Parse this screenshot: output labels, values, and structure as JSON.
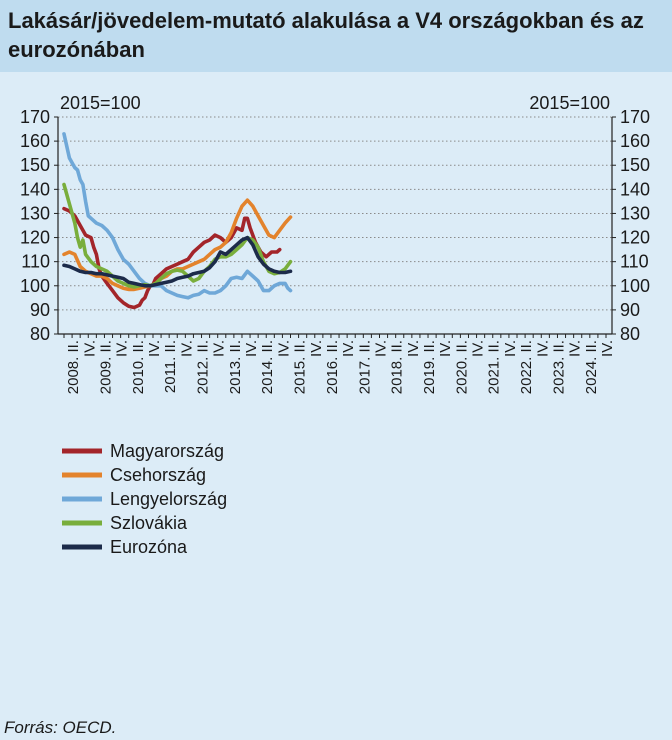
{
  "header": {
    "title": "Lakásár/jövedelem-mutató alakulása a V4 országokban és az eurozónában"
  },
  "source": "Forrás: OECD.",
  "chart_data": {
    "type": "line",
    "title": "Lakásár/jövedelem-mutató alakulása a V4 országokban és az eurozónában",
    "left_axis_note": "2015=100",
    "right_axis_note": "2015=100",
    "ylim": [
      80,
      170
    ],
    "yticks": [
      80,
      90,
      100,
      110,
      120,
      130,
      140,
      150,
      160,
      170
    ],
    "grid": "horizontal dotted",
    "legend_position": "bottom-left",
    "quarter_start": "2008 Q1",
    "quarter_end": "2024 Q4",
    "xtick_labels": [
      "2008. II.",
      "IV.",
      "2009. II.",
      "IV.",
      "2010. II.",
      "IV.",
      "2011. II.",
      "IV.",
      "2012. II.",
      "IV.",
      "2013. II.",
      "IV.",
      "2014. II.",
      "IV.",
      "2015. II.",
      "IV.",
      "2016. II.",
      "IV.",
      "2017. II.",
      "IV.",
      "2018. II.",
      "IV.",
      "2019. II.",
      "IV.",
      "2020. II.",
      "IV.",
      "2021. II.",
      "IV.",
      "2022. II.",
      "IV.",
      "2023. II.",
      "IV.",
      "2024. II.",
      "IV."
    ],
    "series": [
      {
        "name": "Magyarország",
        "color": "#a3252a",
        "points": [
          [
            0,
            132
          ],
          [
            2,
            131
          ],
          [
            4,
            129
          ],
          [
            6,
            125
          ],
          [
            8,
            121
          ],
          [
            10,
            120
          ],
          [
            11,
            116
          ],
          [
            12,
            113
          ],
          [
            13,
            107
          ],
          [
            14,
            104
          ],
          [
            16,
            101
          ],
          [
            18,
            98
          ],
          [
            20,
            95
          ],
          [
            22,
            93
          ],
          [
            24,
            91.5
          ],
          [
            26,
            91
          ],
          [
            28,
            92
          ],
          [
            29,
            94
          ],
          [
            30,
            95
          ],
          [
            31,
            98
          ],
          [
            32,
            100
          ],
          [
            33,
            100.5
          ],
          [
            34,
            103
          ],
          [
            36,
            105
          ],
          [
            38,
            107
          ],
          [
            40,
            108
          ],
          [
            42,
            109
          ],
          [
            44,
            110
          ],
          [
            46,
            111
          ],
          [
            48,
            114
          ],
          [
            50,
            116
          ],
          [
            52,
            118
          ],
          [
            54,
            119
          ],
          [
            56,
            121
          ],
          [
            58,
            120
          ],
          [
            60,
            118
          ],
          [
            62,
            120
          ],
          [
            64,
            124
          ],
          [
            66,
            123
          ],
          [
            67,
            128
          ],
          [
            68,
            128
          ],
          [
            69,
            124
          ],
          [
            71,
            118
          ],
          [
            73,
            114
          ],
          [
            75,
            112
          ],
          [
            77,
            114
          ],
          [
            79,
            114
          ],
          [
            80,
            115
          ]
        ]
      },
      {
        "name": "Csehország",
        "color": "#e3832c",
        "points": [
          [
            0,
            113
          ],
          [
            2,
            114
          ],
          [
            4,
            113
          ],
          [
            6,
            108
          ],
          [
            8,
            106
          ],
          [
            10,
            105
          ],
          [
            12,
            104
          ],
          [
            14,
            104
          ],
          [
            16,
            103
          ],
          [
            18,
            101
          ],
          [
            20,
            100
          ],
          [
            22,
            99
          ],
          [
            24,
            98.5
          ],
          [
            26,
            98.5
          ],
          [
            28,
            99
          ],
          [
            30,
            99.5
          ],
          [
            32,
            100
          ],
          [
            34,
            101
          ],
          [
            36,
            103
          ],
          [
            38,
            104
          ],
          [
            40,
            106
          ],
          [
            42,
            107
          ],
          [
            44,
            107
          ],
          [
            46,
            108
          ],
          [
            48,
            109
          ],
          [
            50,
            110
          ],
          [
            52,
            111
          ],
          [
            54,
            113
          ],
          [
            56,
            115
          ],
          [
            58,
            116
          ],
          [
            60,
            118
          ],
          [
            62,
            122
          ],
          [
            64,
            128
          ],
          [
            66,
            133
          ],
          [
            68,
            135.5
          ],
          [
            70,
            133
          ],
          [
            72,
            129
          ],
          [
            74,
            125
          ],
          [
            76,
            121
          ],
          [
            78,
            120
          ],
          [
            80,
            123
          ],
          [
            82,
            126
          ],
          [
            84,
            128.5
          ]
        ]
      },
      {
        "name": "Lengyelország",
        "color": "#6fa8d8",
        "points": [
          [
            0,
            163
          ],
          [
            2,
            153
          ],
          [
            4,
            149
          ],
          [
            5,
            148
          ],
          [
            6,
            144
          ],
          [
            7,
            142
          ],
          [
            8,
            135
          ],
          [
            9,
            129
          ],
          [
            10,
            128
          ],
          [
            12,
            126
          ],
          [
            14,
            125
          ],
          [
            16,
            123
          ],
          [
            18,
            120
          ],
          [
            20,
            115
          ],
          [
            22,
            111
          ],
          [
            24,
            109
          ],
          [
            26,
            106
          ],
          [
            28,
            103
          ],
          [
            30,
            101
          ],
          [
            32,
            100
          ],
          [
            34,
            100
          ],
          [
            36,
            100
          ],
          [
            38,
            98
          ],
          [
            40,
            97
          ],
          [
            42,
            96
          ],
          [
            44,
            95.5
          ],
          [
            46,
            95
          ],
          [
            48,
            96
          ],
          [
            50,
            96.5
          ],
          [
            52,
            98
          ],
          [
            54,
            97
          ],
          [
            56,
            97
          ],
          [
            58,
            98
          ],
          [
            60,
            100
          ],
          [
            62,
            103
          ],
          [
            64,
            103.5
          ],
          [
            66,
            103
          ],
          [
            68,
            106
          ],
          [
            70,
            104
          ],
          [
            72,
            102
          ],
          [
            74,
            98
          ],
          [
            76,
            98
          ],
          [
            78,
            100
          ],
          [
            80,
            101
          ],
          [
            82,
            101
          ],
          [
            83,
            99
          ],
          [
            84,
            98
          ]
        ]
      },
      {
        "name": "Szlovákia",
        "color": "#79ae3c",
        "points": [
          [
            0,
            142
          ],
          [
            2,
            134
          ],
          [
            4,
            126
          ],
          [
            5,
            120
          ],
          [
            6,
            116
          ],
          [
            7,
            119
          ],
          [
            8,
            113
          ],
          [
            10,
            110
          ],
          [
            12,
            108
          ],
          [
            14,
            107
          ],
          [
            16,
            106
          ],
          [
            18,
            104
          ],
          [
            20,
            102
          ],
          [
            22,
            101
          ],
          [
            24,
            100
          ],
          [
            26,
            99.5
          ],
          [
            28,
            100
          ],
          [
            30,
            100.5
          ],
          [
            32,
            100
          ],
          [
            34,
            101
          ],
          [
            36,
            103
          ],
          [
            38,
            105
          ],
          [
            40,
            106
          ],
          [
            42,
            106.5
          ],
          [
            44,
            106
          ],
          [
            46,
            104
          ],
          [
            48,
            102
          ],
          [
            50,
            103
          ],
          [
            52,
            106
          ],
          [
            54,
            108
          ],
          [
            56,
            111
          ],
          [
            58,
            112
          ],
          [
            60,
            112
          ],
          [
            62,
            113
          ],
          [
            64,
            115
          ],
          [
            66,
            117
          ],
          [
            68,
            120
          ],
          [
            70,
            119
          ],
          [
            72,
            116
          ],
          [
            74,
            110
          ],
          [
            76,
            106
          ],
          [
            78,
            105
          ],
          [
            80,
            105.5
          ],
          [
            82,
            107
          ],
          [
            84,
            110
          ]
        ]
      },
      {
        "name": "Eurozóna",
        "color": "#1c2b4a",
        "points": [
          [
            0,
            108.5
          ],
          [
            2,
            108
          ],
          [
            4,
            107
          ],
          [
            6,
            106
          ],
          [
            8,
            105.5
          ],
          [
            10,
            105.5
          ],
          [
            12,
            105
          ],
          [
            14,
            105
          ],
          [
            16,
            104.5
          ],
          [
            18,
            104
          ],
          [
            20,
            103.5
          ],
          [
            22,
            103
          ],
          [
            24,
            101.5
          ],
          [
            26,
            101
          ],
          [
            28,
            100.5
          ],
          [
            30,
            100
          ],
          [
            32,
            100
          ],
          [
            34,
            100.5
          ],
          [
            36,
            101
          ],
          [
            38,
            101.5
          ],
          [
            40,
            102
          ],
          [
            42,
            103
          ],
          [
            44,
            103.5
          ],
          [
            46,
            104
          ],
          [
            48,
            105
          ],
          [
            50,
            105.5
          ],
          [
            52,
            106
          ],
          [
            54,
            107.5
          ],
          [
            56,
            110
          ],
          [
            58,
            114
          ],
          [
            60,
            113
          ],
          [
            62,
            115
          ],
          [
            64,
            117
          ],
          [
            66,
            119
          ],
          [
            68,
            120
          ],
          [
            70,
            117
          ],
          [
            72,
            112
          ],
          [
            74,
            109
          ],
          [
            76,
            107
          ],
          [
            78,
            106
          ],
          [
            80,
            105.5
          ],
          [
            82,
            105.5
          ],
          [
            84,
            106
          ]
        ]
      }
    ]
  }
}
